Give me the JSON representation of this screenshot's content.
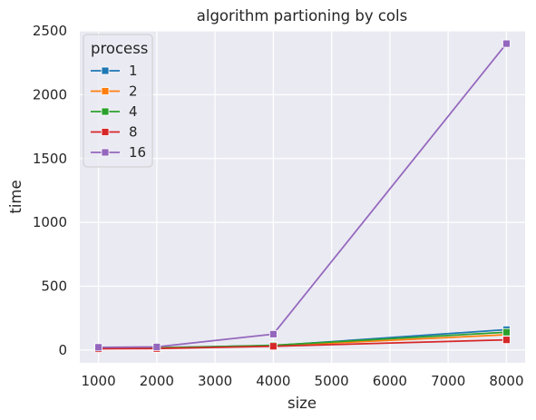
{
  "chart_data": {
    "type": "line",
    "title": "algorithm partioning by cols",
    "xlabel": "size",
    "ylabel": "time",
    "x": [
      1000,
      2000,
      4000,
      8000
    ],
    "xlim": [
      680,
      8320
    ],
    "ylim": [
      -100,
      2500
    ],
    "xticks": [
      1000,
      2000,
      3000,
      4000,
      5000,
      6000,
      7000,
      8000
    ],
    "yticks": [
      0,
      500,
      1000,
      1500,
      2000,
      2500
    ],
    "grid": true,
    "background": "#eaeaf2",
    "legend": {
      "title": "process",
      "placement": "top-left"
    },
    "series": [
      {
        "name": "1",
        "color": "#1f77b4",
        "values": [
          20,
          20,
          35,
          160
        ]
      },
      {
        "name": "2",
        "color": "#ff7f0e",
        "values": [
          18,
          18,
          33,
          120
        ]
      },
      {
        "name": "4",
        "color": "#2ca02c",
        "values": [
          15,
          15,
          38,
          140
        ]
      },
      {
        "name": "8",
        "color": "#d62728",
        "values": [
          10,
          12,
          30,
          80
        ]
      },
      {
        "name": "16",
        "color": "#9467bd",
        "values": [
          22,
          25,
          125,
          2400
        ]
      }
    ]
  }
}
